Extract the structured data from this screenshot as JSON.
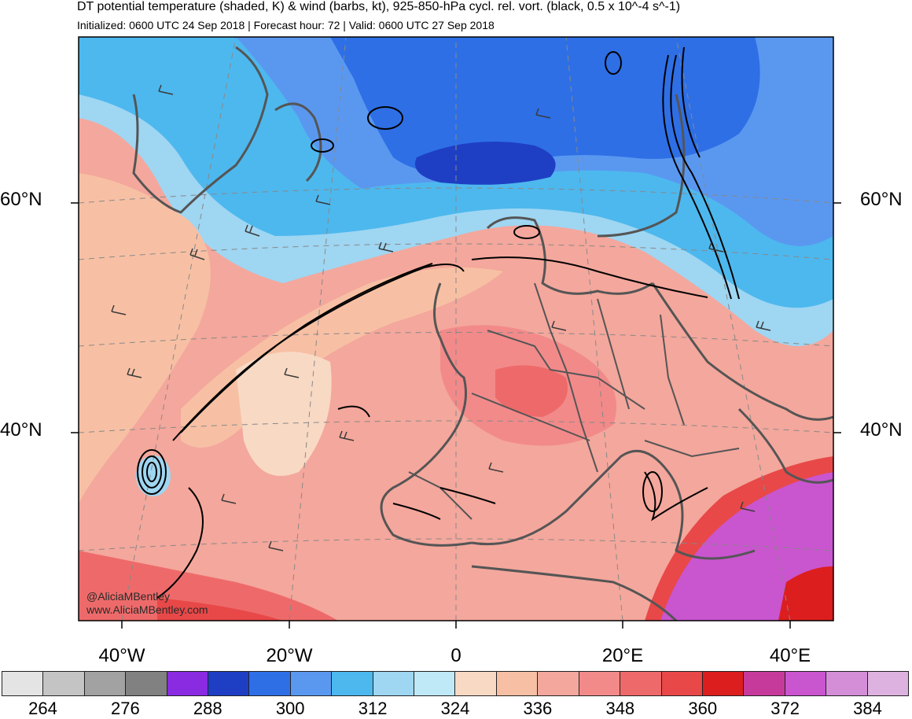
{
  "header": {
    "title": "DT potential temperature (shaded, K) & wind (barbs, kt), 925-850-hPa cycl. rel. vort. (black, 0.5 x 10^-4 s^-1)",
    "subtitle": "Initialized: 0600 UTC 24 Sep 2018 | Forecast hour: 72 | Valid: 0600 UTC 27 Sep 2018"
  },
  "map": {
    "lat_labels": {
      "north": "60°N",
      "south": "40°N"
    },
    "lon_labels": [
      "40°W",
      "20°W",
      "0",
      "20°E",
      "40°E"
    ],
    "credit_handle": "@AliciaMBentley",
    "credit_url": "www.AliciaMBentley.com",
    "vorticity_color": "#000000",
    "barb_color": "#3a3a3a",
    "coastline_color": "#555555"
  },
  "colorbar": {
    "colors": [
      "#e4e4e4",
      "#c4c4c4",
      "#a2a2a2",
      "#818181",
      "#8a2be2",
      "#1e3fc4",
      "#2e6fe6",
      "#5a98f0",
      "#4db8ee",
      "#9fd6f2",
      "#bfe9f6",
      "#f8d9c4",
      "#f7c0a4",
      "#f4a79c",
      "#f28a8a",
      "#ee6a6a",
      "#e84848",
      "#dc1e1e",
      "#c63a9c",
      "#c955cf",
      "#d48ed8",
      "#deb2e0"
    ],
    "labels": [
      "264",
      "276",
      "288",
      "300",
      "312",
      "324",
      "336",
      "348",
      "360",
      "372",
      "384"
    ]
  }
}
